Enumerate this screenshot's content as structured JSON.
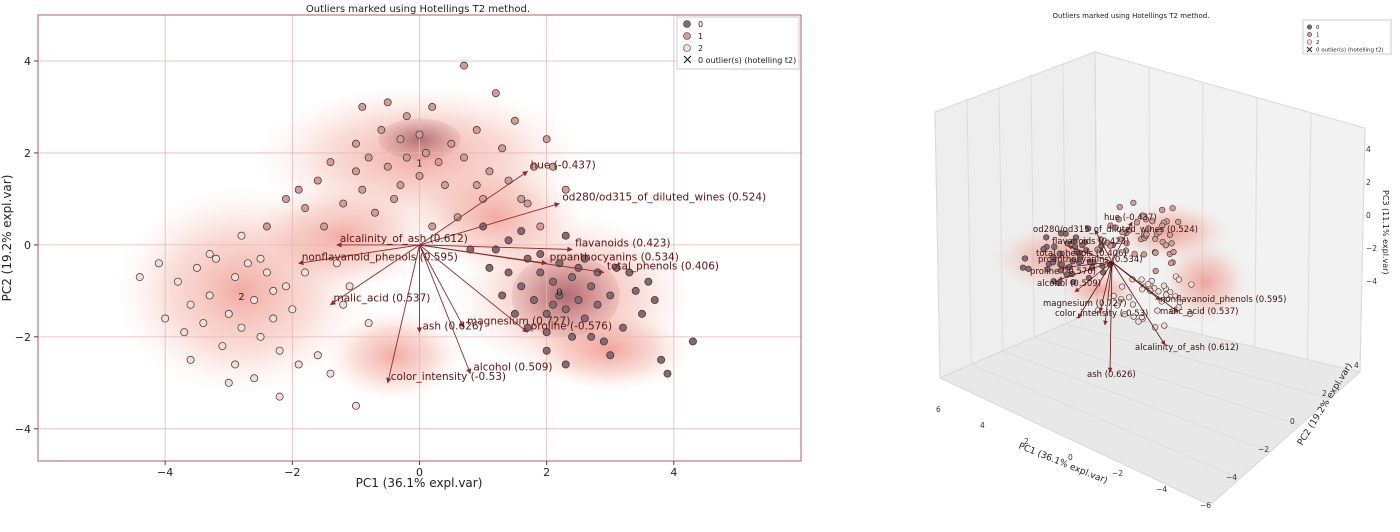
{
  "chart_data": [
    {
      "type": "scatter",
      "title": "Outliers marked using Hotellings T2 method.",
      "xlabel": "PC1 (36.1% expl.var)",
      "ylabel": "PC2 (19.2% expl.var)",
      "xlim": [
        -6.0,
        6.0
      ],
      "ylim": [
        -4.7,
        5.0
      ],
      "xticks": [
        -4,
        -2,
        0,
        2,
        4
      ],
      "yticks": [
        -4,
        -2,
        0,
        2,
        4
      ],
      "grid": true,
      "legend_position": "top-right",
      "legend": [
        {
          "label": "0",
          "marker": "circle",
          "color": "#8a6870"
        },
        {
          "label": "1",
          "marker": "circle",
          "color": "#d49c94"
        },
        {
          "label": "2",
          "marker": "circle",
          "color": "#f7dcd6"
        },
        {
          "label": "0 outlier(s) (hotelling t2)",
          "marker": "x",
          "color": "#222222"
        }
      ],
      "cluster_labels": [
        {
          "label": "0",
          "x": 2.2,
          "y": -1.1
        },
        {
          "label": "1",
          "x": 0.0,
          "y": 1.7
        },
        {
          "label": "2",
          "x": -2.8,
          "y": -1.2
        }
      ],
      "series": [
        {
          "name": "0",
          "color": "#8a6870",
          "points": [
            [
              1.2,
              -0.1
            ],
            [
              1.4,
              -0.6
            ],
            [
              1.6,
              -0.9
            ],
            [
              1.7,
              -0.3
            ],
            [
              1.8,
              -1.2
            ],
            [
              1.9,
              -0.6
            ],
            [
              2.0,
              -1.5
            ],
            [
              2.1,
              -0.8
            ],
            [
              2.2,
              -1.1
            ],
            [
              2.3,
              -1.4
            ],
            [
              2.4,
              -0.7
            ],
            [
              2.5,
              -1.2
            ],
            [
              2.6,
              -1.6
            ],
            [
              2.7,
              -0.9
            ],
            [
              2.8,
              -1.3
            ],
            [
              3.0,
              -1.1
            ],
            [
              3.1,
              -0.5
            ],
            [
              3.2,
              -1.8
            ],
            [
              3.4,
              -1.0
            ],
            [
              3.5,
              -1.5
            ],
            [
              2.0,
              -1.9
            ],
            [
              2.2,
              -0.4
            ],
            [
              2.4,
              -2.0
            ],
            [
              2.6,
              -0.3
            ],
            [
              1.5,
              -1.5
            ],
            [
              1.3,
              -1.1
            ],
            [
              2.9,
              -2.1
            ],
            [
              3.3,
              -0.6
            ],
            [
              1.9,
              -0.2
            ],
            [
              3.7,
              -1.2
            ],
            [
              3.0,
              -2.4
            ],
            [
              3.8,
              -2.5
            ],
            [
              2.0,
              -2.3
            ],
            [
              2.7,
              -2.0
            ],
            [
              4.3,
              -2.1
            ],
            [
              1.1,
              -0.5
            ],
            [
              1.7,
              -1.8
            ],
            [
              2.1,
              -1.3
            ],
            [
              2.5,
              -0.5
            ],
            [
              3.6,
              -0.8
            ],
            [
              1.6,
              0.3
            ],
            [
              2.3,
              0.2
            ],
            [
              0.8,
              -0.1
            ],
            [
              1.0,
              0.4
            ],
            [
              2.8,
              -0.6
            ],
            [
              3.9,
              -2.8
            ],
            [
              2.3,
              -2.6
            ],
            [
              1.4,
              0.1
            ]
          ]
        },
        {
          "name": "1",
          "color": "#d49c94",
          "points": [
            [
              -1.0,
              2.2
            ],
            [
              -0.8,
              1.9
            ],
            [
              -0.6,
              2.5
            ],
            [
              -0.5,
              1.7
            ],
            [
              -0.3,
              2.3
            ],
            [
              -0.2,
              1.9
            ],
            [
              0.0,
              2.4
            ],
            [
              0.1,
              2.0
            ],
            [
              0.3,
              1.8
            ],
            [
              0.5,
              2.2
            ],
            [
              0.7,
              1.9
            ],
            [
              0.9,
              2.5
            ],
            [
              1.1,
              1.6
            ],
            [
              1.4,
              1.4
            ],
            [
              1.6,
              1.0
            ],
            [
              -1.4,
              1.8
            ],
            [
              -1.6,
              1.4
            ],
            [
              -1.9,
              1.2
            ],
            [
              -2.1,
              1.0
            ],
            [
              -1.2,
              0.9
            ],
            [
              -0.9,
              1.2
            ],
            [
              -0.4,
              1.0
            ],
            [
              0.4,
              1.3
            ],
            [
              1.8,
              1.7
            ],
            [
              2.0,
              2.3
            ],
            [
              2.3,
              1.2
            ],
            [
              0.7,
              3.9
            ],
            [
              1.5,
              2.7
            ],
            [
              0.2,
              3.0
            ],
            [
              -0.2,
              2.8
            ],
            [
              -0.5,
              3.1
            ],
            [
              1.2,
              3.3
            ],
            [
              -0.9,
              3.0
            ],
            [
              0.0,
              1.5
            ],
            [
              1.0,
              1.0
            ],
            [
              0.6,
              0.6
            ],
            [
              -1.5,
              0.4
            ],
            [
              -2.4,
              0.4
            ],
            [
              -0.7,
              0.7
            ],
            [
              1.7,
              0.9
            ],
            [
              0.2,
              0.4
            ],
            [
              -1.0,
              1.6
            ],
            [
              1.3,
              2.1
            ],
            [
              -0.3,
              1.3
            ],
            [
              0.9,
              1.3
            ],
            [
              2.1,
              1.7
            ],
            [
              -1.8,
              0.8
            ],
            [
              1.9,
              0.4
            ]
          ]
        },
        {
          "name": "2",
          "color": "#f7dcd6",
          "points": [
            [
              -4.1,
              -0.4
            ],
            [
              -3.8,
              -0.8
            ],
            [
              -3.6,
              -1.3
            ],
            [
              -3.5,
              -0.5
            ],
            [
              -3.3,
              -1.1
            ],
            [
              -3.2,
              -0.3
            ],
            [
              -3.0,
              -1.5
            ],
            [
              -2.9,
              -0.7
            ],
            [
              -2.8,
              -1.8
            ],
            [
              -2.7,
              -0.4
            ],
            [
              -2.6,
              -1.2
            ],
            [
              -2.5,
              -2.0
            ],
            [
              -2.4,
              -0.6
            ],
            [
              -2.3,
              -1.6
            ],
            [
              -2.2,
              -2.3
            ],
            [
              -2.1,
              -0.9
            ],
            [
              -2.0,
              -1.4
            ],
            [
              -1.9,
              -2.6
            ],
            [
              -3.4,
              -1.7
            ],
            [
              -3.1,
              -2.2
            ],
            [
              -2.9,
              -2.6
            ],
            [
              -2.6,
              -2.9
            ],
            [
              -3.7,
              -1.9
            ],
            [
              -4.0,
              -1.6
            ],
            [
              -3.3,
              -0.2
            ],
            [
              -2.8,
              0.2
            ],
            [
              -2.5,
              -0.3
            ],
            [
              -1.6,
              -2.4
            ],
            [
              -1.3,
              -0.4
            ],
            [
              -1.1,
              -0.9
            ],
            [
              -4.4,
              -0.7
            ],
            [
              -3.0,
              -3.0
            ],
            [
              -1.4,
              -2.8
            ],
            [
              -0.8,
              -1.7
            ],
            [
              -1.0,
              -3.5
            ],
            [
              -2.3,
              -1.0
            ],
            [
              -3.6,
              -2.5
            ],
            [
              -1.8,
              -0.6
            ],
            [
              -2.2,
              -3.3
            ],
            [
              -1.2,
              -1.3
            ]
          ]
        }
      ],
      "loadings": [
        {
          "label": "hue (-0.437)",
          "x": 1.7,
          "y": 1.6
        },
        {
          "label": "od280/od315_of_diluted_wines (0.524)",
          "x": 2.2,
          "y": 0.9
        },
        {
          "label": "flavanoids (0.423)",
          "x": 2.4,
          "y": -0.1
        },
        {
          "label": "proanthocyanins (0.534)",
          "x": 2.0,
          "y": -0.4
        },
        {
          "label": "total_phenols (0.406)",
          "x": 2.9,
          "y": -0.6
        },
        {
          "label": "alcalinity_of_ash (0.612)",
          "x": -1.3,
          "y": 0.0
        },
        {
          "label": "nonflavanoid_phenols (0.595)",
          "x": -1.9,
          "y": -0.4
        },
        {
          "label": "malic_acid (0.537)",
          "x": -1.4,
          "y": -1.3
        },
        {
          "label": "magnesium (0.727)",
          "x": 0.7,
          "y": -1.8
        },
        {
          "label": "ash (0.626)",
          "x": 0.0,
          "y": -1.9
        },
        {
          "label": "proline (-0.576)",
          "x": 1.7,
          "y": -1.9
        },
        {
          "label": "alcohol (0.509)",
          "x": 0.8,
          "y": -2.8
        },
        {
          "label": "color_intensity (-0.53)",
          "x": -0.5,
          "y": -3.0
        }
      ]
    },
    {
      "type": "scatter",
      "title": "Outliers marked using Hotellings T2 method.",
      "xlabel": "PC1 (36.1% expl.var)",
      "ylabel": "PC2 (19.2% expl.var)",
      "zlabel": "PC3 (11.1% expl.var)",
      "xticks": [
        -6,
        -4,
        -2,
        0,
        2,
        4,
        6
      ],
      "yticks": [
        -4,
        -2,
        0,
        2,
        4
      ],
      "zticks": [
        -4,
        -2,
        0,
        2,
        4
      ],
      "legend_position": "top-right",
      "legend": [
        {
          "label": "0",
          "marker": "circle",
          "color": "#8a6870"
        },
        {
          "label": "1",
          "marker": "circle",
          "color": "#d49c94"
        },
        {
          "label": "2",
          "marker": "circle",
          "color": "#f7dcd6"
        },
        {
          "label": "0 outlier(s) (hotelling t2)",
          "marker": "x",
          "color": "#222222"
        }
      ],
      "loading_labels": [
        {
          "label": "hue (-0.437)"
        },
        {
          "label": "od280/od315_of_diluted_wines (0.524)"
        },
        {
          "label": "flavanoids (0.423)"
        },
        {
          "label": "total_phenols (0.406)"
        },
        {
          "label": "proanthocyanins (0.534)"
        },
        {
          "label": "proline (-0.576)"
        },
        {
          "label": "alcohol (0.509)"
        },
        {
          "label": "magnesium (0.727)"
        },
        {
          "label": "color_intensity (-0.53)"
        },
        {
          "label": "nonflavanoid_phenols (0.595)"
        },
        {
          "label": "malic_acid (0.537)"
        },
        {
          "label": "alcalinity_of_ash (0.612)"
        },
        {
          "label": "ash (0.626)"
        }
      ]
    }
  ]
}
